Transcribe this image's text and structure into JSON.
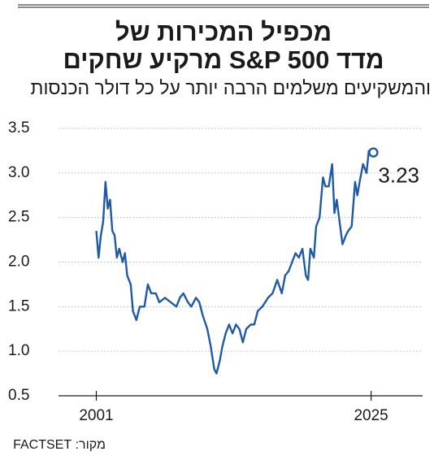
{
  "chart_data": {
    "type": "line",
    "title": [
      "מכפיל המכירות של",
      "מדד S&P 500 מרקיע שחקים"
    ],
    "subtitle": "והמשקיעים משלמים הרבה יותר על כל דולר הכנסות",
    "source": "מקור: FACTSET",
    "x": [
      2001.0,
      2001.2,
      2001.4,
      2001.6,
      2001.8,
      2002.0,
      2002.2,
      2002.4,
      2002.6,
      2002.8,
      2003.0,
      2003.3,
      2003.5,
      2003.7,
      2004.0,
      2004.2,
      2004.5,
      2004.8,
      2005.2,
      2005.5,
      2005.8,
      2006.2,
      2006.5,
      2007.0,
      2007.5,
      2008.0,
      2008.3,
      2008.6,
      2009.0,
      2009.3,
      2009.7,
      2010.0,
      2010.3,
      2010.7,
      2011.0,
      2011.3,
      2011.5,
      2011.8,
      2012.0,
      2012.3,
      2012.6,
      2012.9,
      2013.2,
      2013.5,
      2013.8,
      2014.1,
      2014.5,
      2014.8,
      2015.1,
      2015.5,
      2016.0,
      2016.4,
      2016.8,
      2017.2,
      2017.5,
      2017.8,
      2018.1,
      2018.4,
      2018.7,
      2019.0,
      2019.3,
      2019.5,
      2019.7,
      2020.0,
      2020.2,
      2020.5,
      2020.8,
      2021.0,
      2021.3,
      2021.6,
      2021.8,
      2022.0,
      2022.3,
      2022.5,
      2022.8,
      2023.0,
      2023.3,
      2023.6,
      2023.8,
      2024.0,
      2024.3,
      2024.6,
      2024.8,
      2025.2
    ],
    "series": [
      {
        "color": "#1f5aa6",
        "values": [
          2.35,
          2.05,
          2.3,
          2.45,
          2.9,
          2.6,
          2.7,
          2.35,
          2.3,
          2.05,
          2.15,
          2.0,
          2.1,
          1.85,
          1.75,
          1.45,
          1.35,
          1.5,
          1.5,
          1.75,
          1.65,
          1.65,
          1.55,
          1.6,
          1.55,
          1.5,
          1.6,
          1.65,
          1.55,
          1.5,
          1.6,
          1.55,
          1.4,
          1.25,
          1.05,
          0.8,
          0.75,
          0.9,
          1.05,
          1.2,
          1.3,
          1.2,
          1.3,
          1.25,
          1.1,
          1.25,
          1.3,
          1.3,
          1.45,
          1.5,
          1.6,
          1.65,
          1.8,
          1.65,
          1.85,
          1.9,
          2.0,
          2.1,
          2.05,
          2.15,
          1.85,
          1.8,
          2.15,
          2.05,
          2.4,
          2.5,
          2.95,
          2.85,
          2.85,
          3.1,
          2.55,
          2.7,
          2.4,
          2.2,
          2.3,
          2.35,
          2.4,
          2.9,
          2.75,
          2.9,
          3.1,
          3.0,
          3.25,
          3.23
        ]
      }
    ],
    "xlim": [
      1997.7,
      2029.5
    ],
    "xticks": [
      2001,
      2025
    ],
    "ylim": [
      0.5,
      3.5
    ],
    "yticks": [
      0.5,
      {
        "value": 1.0,
        "label": "1.0"
      },
      1.5,
      {
        "value": 2.0,
        "label": "2.0"
      },
      2.5,
      {
        "value": 3.0,
        "label": "3.0"
      },
      3.5
    ],
    "grid": true
  }
}
